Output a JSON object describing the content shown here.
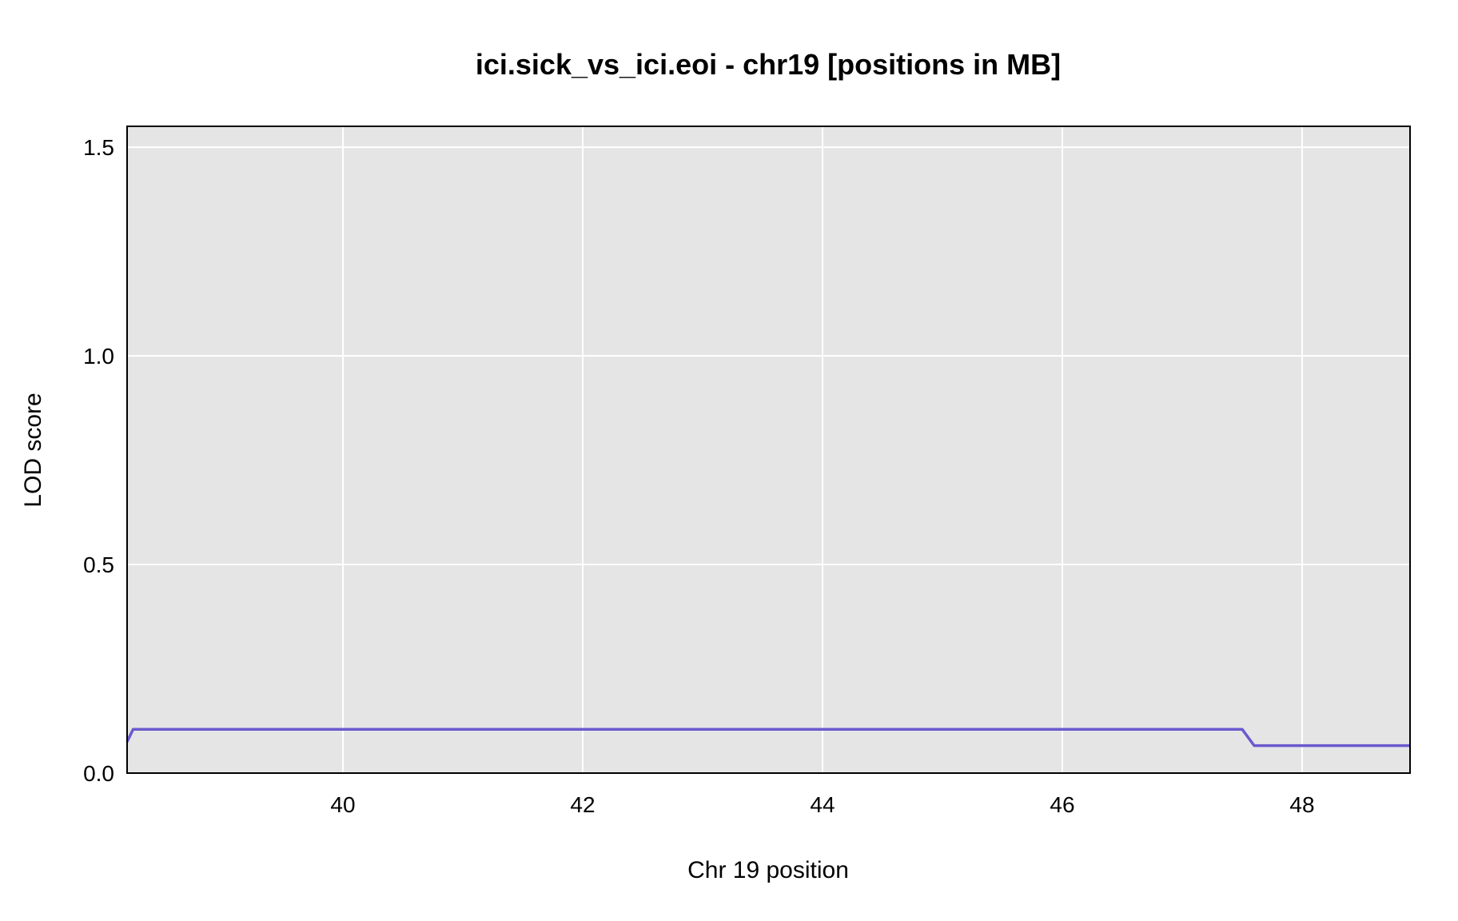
{
  "chart_data": {
    "type": "line",
    "title": "ici.sick_vs_ici.eoi - chr19 [positions in MB]",
    "xlabel": "Chr 19 position",
    "ylabel": "LOD score",
    "xlim": [
      38.2,
      48.9
    ],
    "ylim": [
      0,
      1.55
    ],
    "x_ticks": [
      40,
      42,
      44,
      46,
      48
    ],
    "x_tick_labels": [
      "40",
      "42",
      "44",
      "46",
      "48"
    ],
    "y_ticks": [
      0,
      0.5,
      1.0,
      1.5
    ],
    "y_tick_labels": [
      "0.0",
      "0.5",
      "1.0",
      "1.5"
    ],
    "grid": true,
    "background_color": "#e5e5e5",
    "grid_color": "#ffffff",
    "series": [
      {
        "color": "#6a5acd",
        "points": [
          {
            "x": 38.2,
            "y": 0.075
          },
          {
            "x": 38.25,
            "y": 0.105
          },
          {
            "x": 47.5,
            "y": 0.105
          },
          {
            "x": 47.6,
            "y": 0.066
          },
          {
            "x": 48.9,
            "y": 0.066
          }
        ]
      }
    ]
  }
}
